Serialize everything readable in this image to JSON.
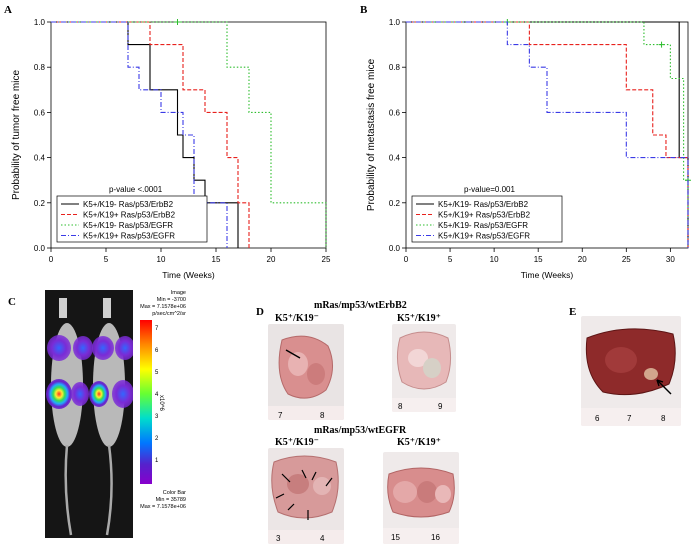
{
  "panels": {
    "a": "A",
    "b": "B",
    "c": "C",
    "d": "D",
    "e": "E"
  },
  "colors": {
    "k19neg_erbb2": "#000000",
    "k19pos_erbb2": "#e8211d",
    "k19neg_egfr": "#2ebd2e",
    "k19pos_egfr": "#3b3be6"
  },
  "chart_data": [
    {
      "type": "line",
      "subtype": "kaplan-meier step",
      "panel": "A",
      "xlabel": "Time (Weeks)",
      "ylabel": "Probability of tumor free mice",
      "xlim": [
        0,
        25
      ],
      "ylim": [
        0,
        1.0
      ],
      "xticks": [
        "0",
        "5",
        "10",
        "15",
        "20",
        "25"
      ],
      "yticks": [
        "0.0",
        "0.2",
        "0.4",
        "0.6",
        "0.8",
        "1.0"
      ],
      "annotation": "p-value <.0001",
      "legend_position": "bottom-left",
      "series": [
        {
          "name": "K5+/K19- Ras/p53/ErbB2",
          "color": "#000000",
          "dash": "solid",
          "x": [
            0,
            7,
            9,
            11.5,
            12,
            13,
            14,
            17
          ],
          "y": [
            1.0,
            0.9,
            0.7,
            0.5,
            0.4,
            0.3,
            0.2,
            0.0
          ]
        },
        {
          "name": "K5+/K19+ Ras/p53/ErbB2",
          "color": "#e8211d",
          "dash": "4,2",
          "x": [
            0,
            9,
            12,
            14,
            16,
            17,
            18
          ],
          "y": [
            1.0,
            0.9,
            0.7,
            0.6,
            0.4,
            0.2,
            0.0
          ]
        },
        {
          "name": "K5+/K19- Ras/p53/EGFR",
          "color": "#2ebd2e",
          "dash": "1.5,2",
          "x": [
            0,
            16,
            18,
            20,
            25
          ],
          "y": [
            1.0,
            0.8,
            0.6,
            0.2,
            0.0
          ],
          "censor": [
            [
              11.5,
              1.0
            ]
          ]
        },
        {
          "name": "K5+/K19+ Ras/p53/EGFR",
          "color": "#3b3be6",
          "dash": "5,2,1,2",
          "x": [
            0,
            7,
            8,
            10,
            12,
            13,
            16
          ],
          "y": [
            1.0,
            0.8,
            0.7,
            0.6,
            0.5,
            0.2,
            0.0
          ]
        }
      ]
    },
    {
      "type": "line",
      "subtype": "kaplan-meier step",
      "panel": "B",
      "xlabel": "Time (Weeks)",
      "ylabel": "Probability of metastasis free mice",
      "xlim": [
        0,
        32
      ],
      "ylim": [
        0,
        1.0
      ],
      "xticks": [
        "0",
        "5",
        "10",
        "15",
        "20",
        "25",
        "30"
      ],
      "yticks": [
        "0.0",
        "0.2",
        "0.4",
        "0.6",
        "0.8",
        "1.0"
      ],
      "annotation": "p-value=0.001",
      "legend_position": "bottom-left",
      "series": [
        {
          "name": "K5+/K19- Ras/p53/ErbB2",
          "color": "#000000",
          "dash": "solid",
          "x": [
            0,
            31,
            32
          ],
          "y": [
            1.0,
            0.4,
            0.0
          ]
        },
        {
          "name": "K5+/K19+ Ras/p53/ErbB2",
          "color": "#e8211d",
          "dash": "4,2",
          "x": [
            0,
            14,
            25,
            28,
            29.5,
            32
          ],
          "y": [
            1.0,
            0.9,
            0.7,
            0.5,
            0.4,
            0.0
          ]
        },
        {
          "name": "K5+/K19- Ras/p53/EGFR",
          "color": "#2ebd2e",
          "dash": "1.5,2",
          "x": [
            0,
            27,
            30,
            31.5,
            32
          ],
          "y": [
            1.0,
            0.9,
            0.75,
            0.3,
            0.0
          ],
          "censor": [
            [
              11.5,
              1.0
            ],
            [
              29,
              0.9
            ],
            [
              32,
              0.3
            ]
          ]
        },
        {
          "name": "K5+/K19+ Ras/p53/EGFR",
          "color": "#3b3be6",
          "dash": "5,2,1,2",
          "x": [
            0,
            11.5,
            14,
            16,
            25,
            32
          ],
          "y": [
            1.0,
            0.9,
            0.8,
            0.6,
            0.4,
            0.0
          ]
        }
      ]
    }
  ],
  "panel_c": {
    "image_label": "Image",
    "min": "Min = -3700",
    "max": "Max = 7.1578e+06",
    "units": "p/sec/cm^2/sr",
    "scale_ticks": [
      "7",
      "6",
      "5",
      "4",
      "3",
      "2",
      "1"
    ],
    "scale_unit": "x10^6",
    "colorbar_label": "Color Bar",
    "colorbar_min": "Min = 35789",
    "colorbar_max": "Max = 7.1578e+06"
  },
  "panel_d": {
    "top_title": "mRas/mp53/wtErbB2",
    "bottom_title": "mRas/mp53/wtEGFR",
    "label_k19neg": "K5⁺/K19⁻",
    "label_k19pos": "K5⁺/K19⁺",
    "ruler_top_left": [
      "7",
      "8"
    ],
    "ruler_top_right": [
      "8",
      "9"
    ],
    "ruler_bottom_left": [
      "3",
      "4"
    ],
    "ruler_bottom_right": [
      "15",
      "16"
    ]
  },
  "panel_e": {
    "ruler": [
      "6",
      "7",
      "8"
    ]
  }
}
